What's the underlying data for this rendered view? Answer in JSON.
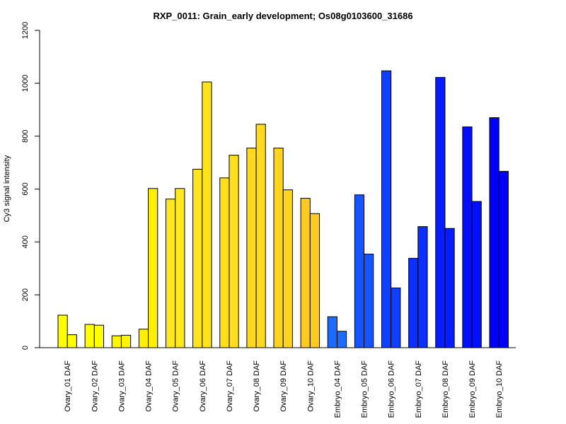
{
  "chart_data": {
    "type": "bar",
    "title": "RXP_0011: Grain_early development; Os08g0103600_31686",
    "xlabel": "",
    "ylabel": "Cy3 signal intensity",
    "ylim": [
      0,
      1200
    ],
    "yticks": [
      0,
      200,
      400,
      600,
      800,
      1000,
      1200
    ],
    "grid": false,
    "legend": "none",
    "categories": [
      "Ovary_01 DAF",
      "Ovary_02 DAF",
      "Ovary_03 DAF",
      "Ovary_04 DAF",
      "Ovary_05 DAF",
      "Ovary_06 DAF",
      "Ovary_07 DAF",
      "Ovary_08 DAF",
      "Ovary_09 DAF",
      "Ovary_10 DAF",
      "Embryo_04 DAF",
      "Embryo_05 DAF",
      "Embryo_06 DAF",
      "Embryo_07 DAF",
      "Embryo_08 DAF",
      "Embryo_09 DAF",
      "Embryo_10 DAF"
    ],
    "series": [
      {
        "values": [
          123,
          88,
          45,
          70,
          562,
          675,
          642,
          755,
          755,
          565,
          117,
          578,
          1047,
          338,
          1022,
          835,
          870
        ]
      },
      {
        "values": [
          49,
          85,
          47,
          602,
          602,
          1005,
          728,
          845,
          597,
          507,
          62,
          354,
          226,
          458,
          451,
          553,
          667
        ]
      }
    ],
    "bar_colors": [
      "#FFFF00",
      "#FFFF00",
      "#FFF500",
      "#FFF000",
      "#FFE81E",
      "#FFE31C",
      "#FFDE1E",
      "#FFD820",
      "#FFD41E",
      "#FFCB22",
      "#1C6BFF",
      "#1555FF",
      "#0F40FF",
      "#0A2FFF",
      "#051DFF",
      "#020FFF",
      "#0000FF"
    ]
  }
}
